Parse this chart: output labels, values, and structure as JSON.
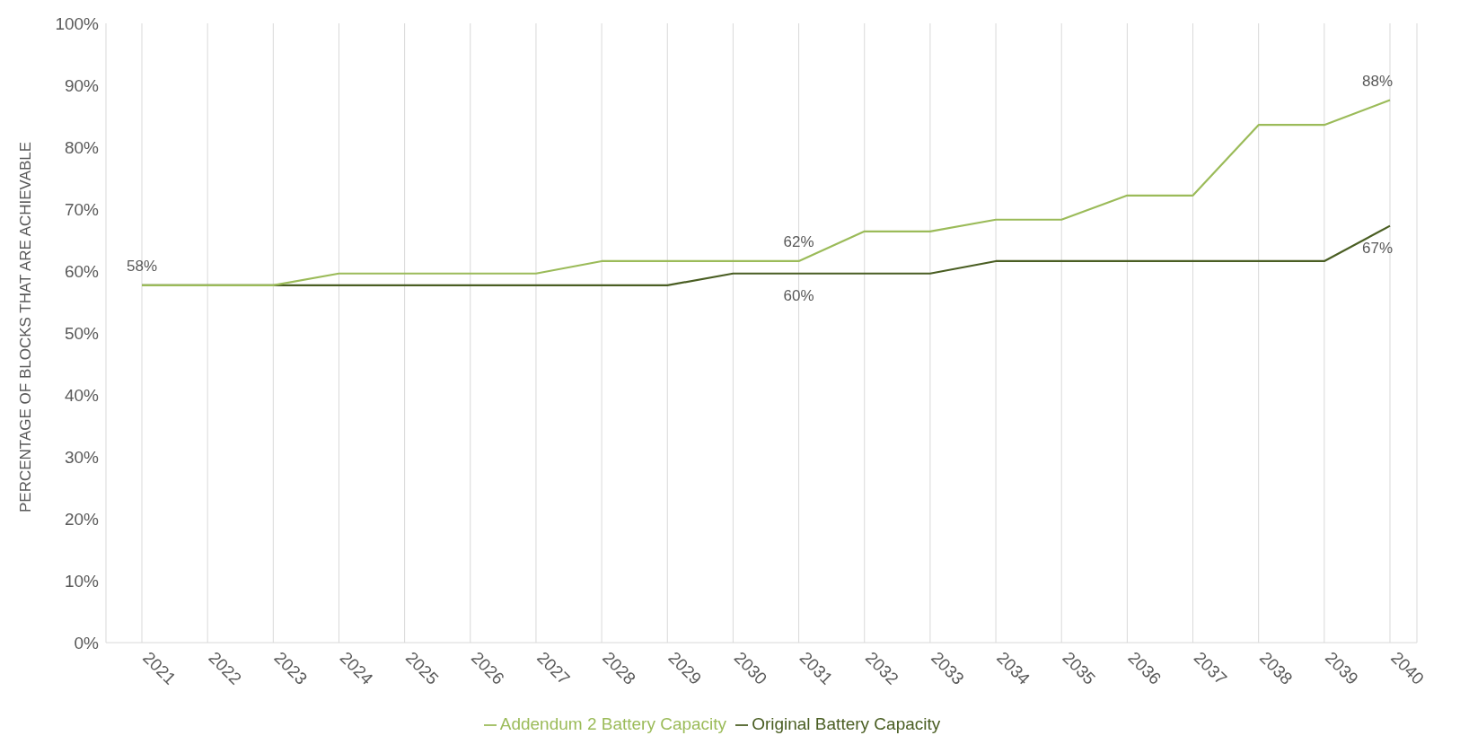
{
  "chart_data": {
    "type": "line",
    "ylabel": "PERCENTAGE OF BLOCKS THAT ARE ACHIEVABLE",
    "categories": [
      "2021",
      "2022",
      "2023",
      "2024",
      "2025",
      "2026",
      "2027",
      "2028",
      "2029",
      "2030",
      "2031",
      "2032",
      "2033",
      "2034",
      "2035",
      "2036",
      "2037",
      "2038",
      "2039",
      "2040"
    ],
    "series": [
      {
        "name": "Original Battery Capacity",
        "color": "#4a5e23",
        "values": [
          57.7,
          57.7,
          57.7,
          57.7,
          57.7,
          57.7,
          57.7,
          57.7,
          57.7,
          59.6,
          59.6,
          59.6,
          59.6,
          61.6,
          61.6,
          61.6,
          61.6,
          61.6,
          61.6,
          67.3
        ],
        "value_labels": [
          null,
          null,
          null,
          null,
          null,
          null,
          null,
          null,
          null,
          null,
          "60%",
          null,
          null,
          null,
          null,
          null,
          null,
          null,
          null,
          "67%"
        ]
      },
      {
        "name": "Addendum 2 Battery Capacity",
        "color": "#9bbb59",
        "values": [
          57.7,
          57.7,
          57.7,
          59.6,
          59.6,
          59.6,
          59.6,
          61.6,
          61.6,
          61.6,
          61.6,
          66.4,
          66.4,
          68.3,
          68.3,
          72.2,
          72.2,
          83.6,
          83.6,
          87.6
        ],
        "value_labels": [
          "58%",
          null,
          null,
          null,
          null,
          null,
          null,
          null,
          null,
          null,
          "62%",
          null,
          null,
          null,
          null,
          null,
          null,
          null,
          null,
          "88%"
        ]
      }
    ],
    "ylim": [
      0,
      100
    ],
    "yticks": [
      {
        "value": 0,
        "label": "0%"
      },
      {
        "value": 10,
        "label": "10%"
      },
      {
        "value": 20,
        "label": "20%"
      },
      {
        "value": 30,
        "label": "30%"
      },
      {
        "value": 40,
        "label": "40%"
      },
      {
        "value": 50,
        "label": "50%"
      },
      {
        "value": 60,
        "label": "60%"
      },
      {
        "value": 70,
        "label": "70%"
      },
      {
        "value": 80,
        "label": "80%"
      },
      {
        "value": 90,
        "label": "90%"
      },
      {
        "value": 100,
        "label": "100%"
      }
    ],
    "grid": "x",
    "legend": "bottom",
    "marker": "none",
    "line_style": "solid"
  }
}
